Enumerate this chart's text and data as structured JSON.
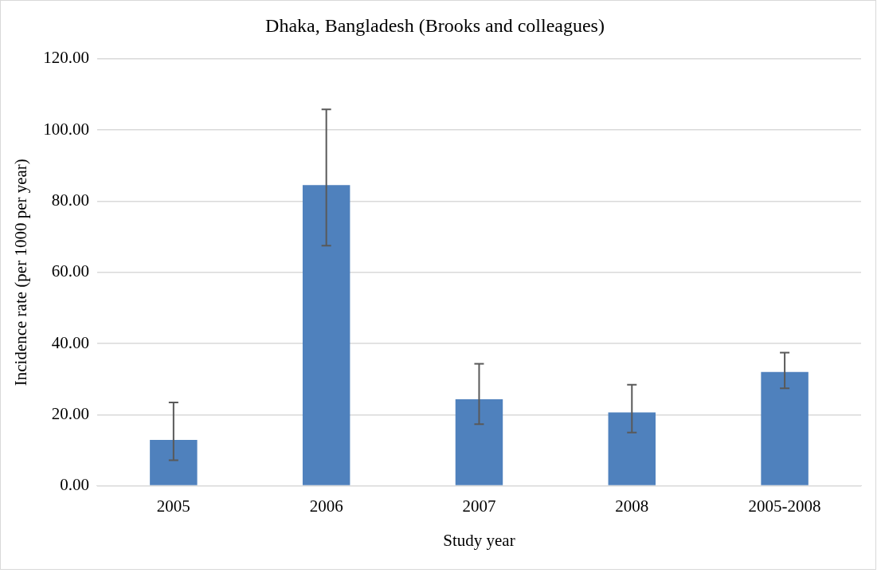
{
  "chart_data": {
    "type": "bar",
    "title": "Dhaka, Bangladesh (Brooks and colleagues)",
    "xlabel": "Study year",
    "ylabel": "Incidence rate (per 1000 per year)",
    "categories": [
      "2005",
      "2006",
      "2007",
      "2008",
      "2005-2008"
    ],
    "values": [
      12.9,
      84.5,
      24.3,
      20.6,
      32.0
    ],
    "errors": [
      [
        7.2,
        23.4
      ],
      [
        67.5,
        105.8
      ],
      [
        17.3,
        34.3
      ],
      [
        15.0,
        28.4
      ],
      [
        27.4,
        37.4
      ]
    ],
    "color": "#4f81bd",
    "ylim": [
      0,
      120
    ],
    "yticks": [
      {
        "value": 0,
        "label": "0.00"
      },
      {
        "value": 20,
        "label": "20.00"
      },
      {
        "value": 40,
        "label": "40.00"
      },
      {
        "value": 60,
        "label": "60.00"
      },
      {
        "value": 80,
        "label": "80.00"
      },
      {
        "value": 100,
        "label": "100.00"
      },
      {
        "value": 120,
        "label": "120.00"
      }
    ],
    "grid": "y",
    "legend": false
  }
}
